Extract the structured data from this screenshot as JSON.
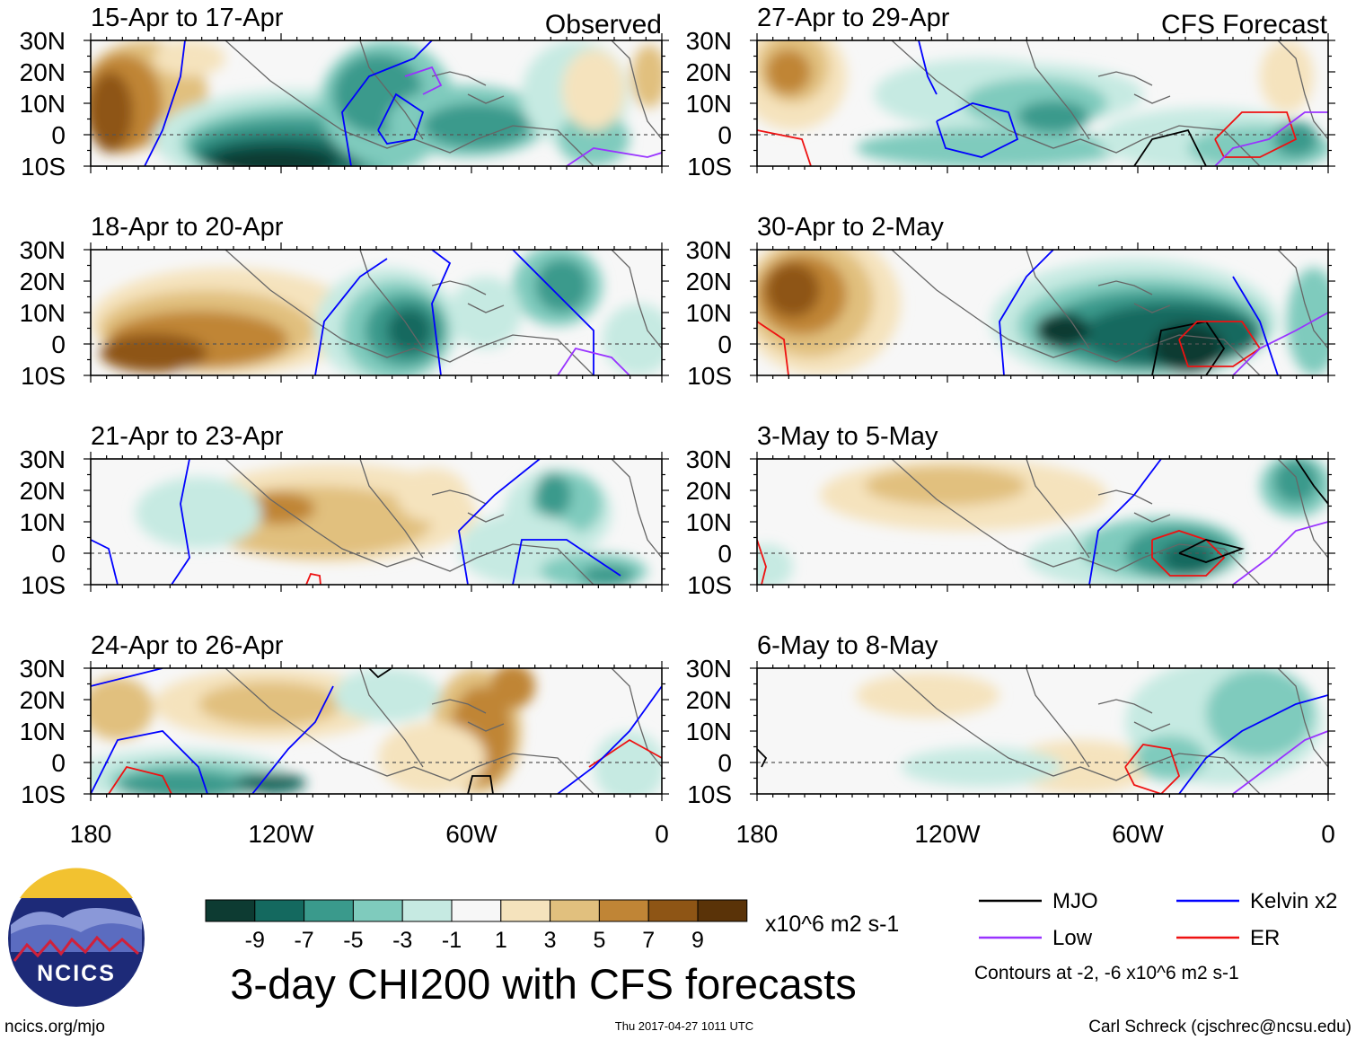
{
  "header": {
    "observed_label": "Observed",
    "forecast_label": "CFS Forecast"
  },
  "lat_labels": [
    "30N",
    "20N",
    "10N",
    "0",
    "10S"
  ],
  "lon_labels": [
    "180",
    "120W",
    "60W",
    "0"
  ],
  "panels": [
    {
      "title": "15-Apr to 17-Apr",
      "column": "observed"
    },
    {
      "title": "18-Apr to 20-Apr",
      "column": "observed"
    },
    {
      "title": "21-Apr to 23-Apr",
      "column": "observed"
    },
    {
      "title": "24-Apr to 26-Apr",
      "column": "observed"
    },
    {
      "title": "27-Apr to 29-Apr",
      "column": "forecast"
    },
    {
      "title": "30-Apr to 2-May",
      "column": "forecast"
    },
    {
      "title": "3-May to 5-May",
      "column": "forecast"
    },
    {
      "title": "6-May to 8-May",
      "column": "forecast"
    }
  ],
  "colorbar": {
    "colors": [
      "#0d3b32",
      "#14695f",
      "#3a9a8c",
      "#7fcbbd",
      "#c6eae2",
      "#f7f7f7",
      "#f5e3bd",
      "#e1c07e",
      "#c08536",
      "#8e5515",
      "#5a3308"
    ],
    "tick_labels": [
      "-9",
      "-7",
      "-5",
      "-3",
      "-1",
      "1",
      "3",
      "5",
      "7",
      "9"
    ],
    "units": "x10^6 m2 s-1"
  },
  "title": "3-day CHI200 with CFS forecasts",
  "legend": {
    "items": [
      {
        "label": "MJO",
        "color": "#000000"
      },
      {
        "label": "Kelvin x2",
        "color": "#0000ff"
      },
      {
        "label": "Low",
        "color": "#9933ff"
      },
      {
        "label": "ER",
        "color": "#ee1111"
      }
    ],
    "note": "Contours at -2, -6 x10^6 m2 s-1"
  },
  "logo": {
    "text": "NCICS"
  },
  "footer": {
    "url": "ncics.org/mjo",
    "timestamp": "Thu 2017-04-27 1011 UTC",
    "credit": "Carl Schreck (cjschrec@ncsu.edu)"
  },
  "fields": {
    "colors": {
      "neg9": "#0d3b32",
      "neg7": "#14695f",
      "neg5": "#3a9a8c",
      "neg3": "#7fcbbd",
      "neg1": "#c6eae2",
      "pos1": "#f5e3bd",
      "pos3": "#e1c07e",
      "pos5": "#c08536",
      "pos7": "#8e5515",
      "pos9": "#5a3308",
      "land": "#666666",
      "equator": "#555555"
    }
  }
}
